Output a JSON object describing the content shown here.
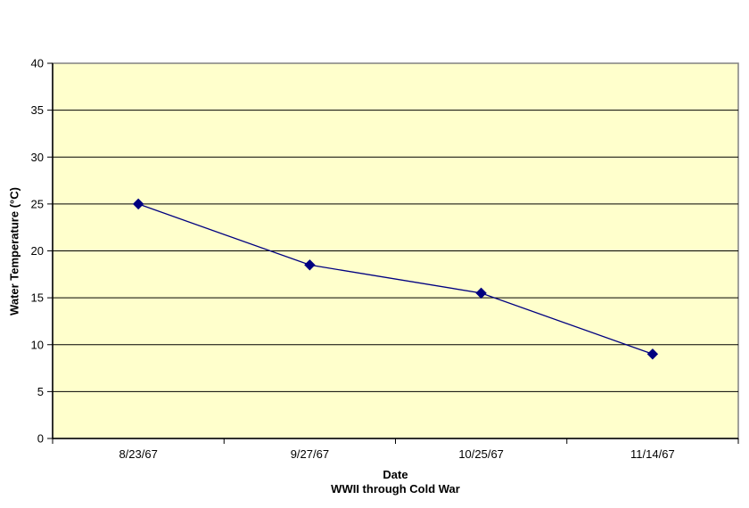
{
  "chart_data": {
    "type": "line",
    "title": "",
    "categories": [
      "8/23/67",
      "9/27/67",
      "10/25/67",
      "11/14/67"
    ],
    "series": [
      {
        "name": "Water Temperature",
        "values": [
          25,
          18.5,
          15.5,
          9
        ]
      }
    ],
    "xlabel": "Date",
    "xlabel_subtitle": "WWII through Cold War",
    "ylabel": "Water Temperature (°C)",
    "ylim": [
      0,
      40
    ],
    "ytick_step": 5,
    "yticks": [
      0,
      5,
      10,
      15,
      20,
      25,
      30,
      35,
      40
    ],
    "grid": true,
    "legend_position": "none",
    "marker_shape": "diamond",
    "colors": {
      "background": "#FFFFFF",
      "plot_fill": "#FFFFCC",
      "plot_border": "#808080",
      "gridline": "#000000",
      "axis_line": "#000000",
      "tick_text": "#000000",
      "series_line": "#000080",
      "marker": "#000080"
    }
  }
}
